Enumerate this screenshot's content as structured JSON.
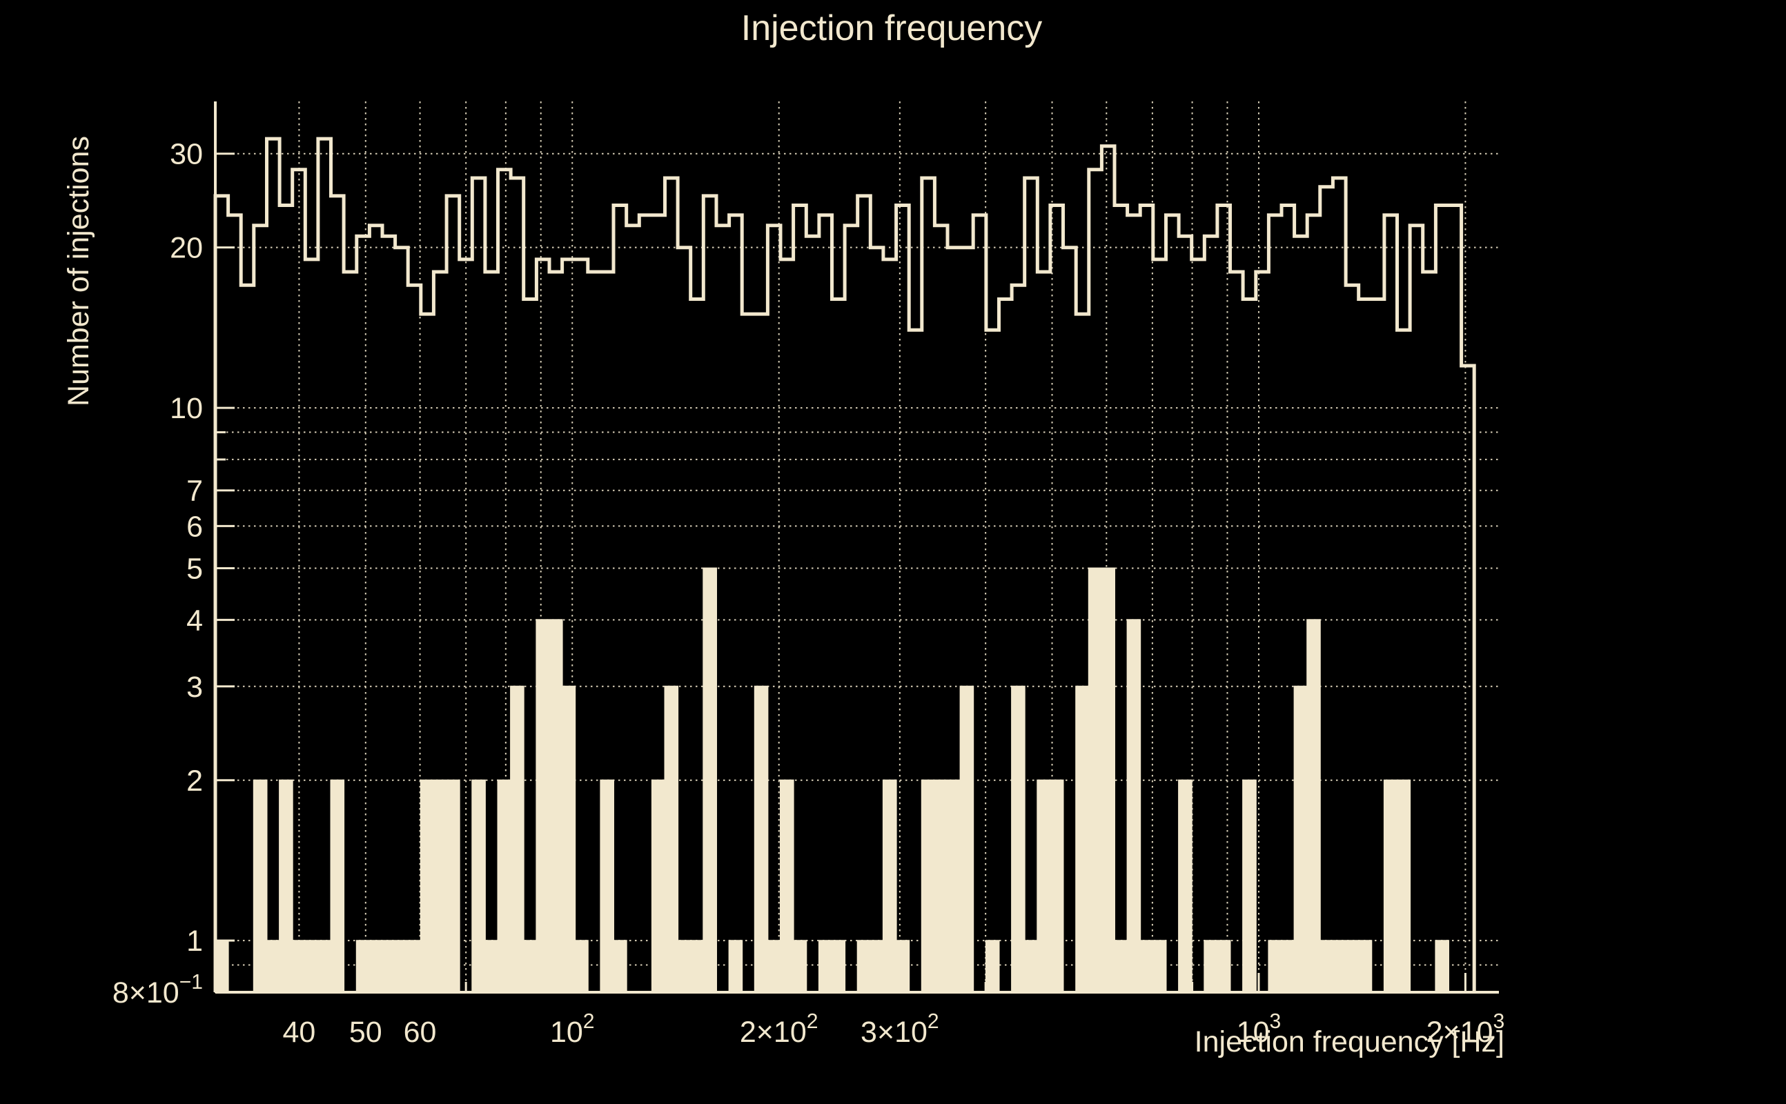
{
  "title": "Injection frequency",
  "colors": {
    "background": "#000000",
    "foreground": "#F2E8CE"
  },
  "chart_data": {
    "type": "bar",
    "subtype": "step-histograms-log-log",
    "title": "Injection frequency",
    "xlabel": "Injection frequency [Hz]",
    "ylabel": "Number of injections",
    "x_scale": "log",
    "y_scale": "log",
    "x_range_hz": [
      30.2,
      2238
    ],
    "y_range": [
      0.8,
      37.6
    ],
    "grid": true,
    "legend": "none",
    "bins": {
      "count": 98,
      "first_edge_hz": 30.2,
      "last_edge_hz": 2060
    },
    "series": [
      {
        "name": "injections-per-bin-outline",
        "style": "step-outline",
        "values": [
          25,
          23,
          17,
          22,
          32,
          24,
          28,
          19,
          32,
          25,
          18,
          21,
          22,
          21,
          20,
          17,
          15,
          18,
          25,
          19,
          27,
          18,
          28,
          27,
          16,
          19,
          18,
          19,
          19,
          18,
          18,
          24,
          22,
          23,
          23,
          27,
          20,
          16,
          25,
          22,
          23,
          15,
          15,
          22,
          19,
          24,
          21,
          23,
          16,
          22,
          25,
          20,
          19,
          24,
          14,
          27,
          22,
          20,
          20,
          23,
          14,
          16,
          17,
          27,
          18,
          24,
          20,
          15,
          28,
          31,
          24,
          23,
          24,
          19,
          23,
          21,
          19,
          21,
          24,
          18,
          16,
          18,
          23,
          24,
          21,
          23,
          26,
          27,
          17,
          16,
          16,
          23,
          14,
          22,
          18,
          24,
          24,
          12
        ]
      },
      {
        "name": "injections-per-bin-filled",
        "style": "filled",
        "values": [
          1,
          0,
          0,
          2,
          1,
          2,
          1,
          1,
          1,
          2,
          0,
          1,
          1,
          1,
          1,
          1,
          2,
          2,
          2,
          0,
          2,
          1,
          2,
          3,
          1,
          4,
          4,
          3,
          1,
          0,
          2,
          1,
          0,
          0,
          2,
          3,
          1,
          1,
          5,
          0,
          1,
          0,
          3,
          1,
          2,
          1,
          0,
          1,
          1,
          0,
          1,
          1,
          2,
          1,
          0,
          2,
          2,
          2,
          3,
          0,
          1,
          0,
          3,
          1,
          2,
          2,
          0,
          3,
          5,
          5,
          1,
          4,
          1,
          1,
          0,
          2,
          0,
          1,
          1,
          0,
          2,
          0,
          1,
          1,
          3,
          4,
          1,
          1,
          1,
          1,
          0,
          2,
          2,
          0,
          0,
          1,
          0,
          0
        ]
      }
    ],
    "x_ticks": [
      {
        "hz": 40,
        "label": "40"
      },
      {
        "hz": 50,
        "label": "50"
      },
      {
        "hz": 60,
        "label": "60"
      },
      {
        "hz": 100,
        "mant": "10",
        "exp": "2"
      },
      {
        "hz": 200,
        "mant": "2×10",
        "exp": "2"
      },
      {
        "hz": 300,
        "mant": "3×10",
        "exp": "2"
      },
      {
        "hz": 1000,
        "mant": "10",
        "exp": "3"
      },
      {
        "hz": 2000,
        "mant": "2×10",
        "exp": "3"
      }
    ],
    "y_ticks": [
      {
        "v": 30,
        "label": "30"
      },
      {
        "v": 20,
        "label": "20"
      },
      {
        "v": 10,
        "label": "10"
      },
      {
        "v": 7,
        "label": "7"
      },
      {
        "v": 6,
        "label": "6"
      },
      {
        "v": 5,
        "label": "5"
      },
      {
        "v": 4,
        "label": "4"
      },
      {
        "v": 3,
        "label": "3"
      },
      {
        "v": 2,
        "label": "2"
      },
      {
        "v": 1,
        "label": "1"
      },
      {
        "v": 0.8,
        "mant": "8×10",
        "exp": "−1"
      }
    ],
    "x_grid_hz": [
      40,
      50,
      60,
      70,
      80,
      90,
      100,
      200,
      300,
      400,
      500,
      600,
      700,
      800,
      900,
      1000,
      2000
    ],
    "y_grid": [
      0.9,
      1,
      2,
      3,
      4,
      5,
      6,
      7,
      8,
      9,
      10,
      20,
      30
    ],
    "x_minor_ticks_hz": [
      40,
      50,
      60,
      70,
      80,
      90,
      100,
      200,
      300,
      400,
      500,
      600,
      700,
      800,
      900,
      1000,
      2000
    ],
    "y_minor_ticks": [
      0.8,
      0.9,
      1,
      2,
      3,
      4,
      5,
      6,
      7,
      8,
      9,
      10,
      20,
      30
    ]
  }
}
